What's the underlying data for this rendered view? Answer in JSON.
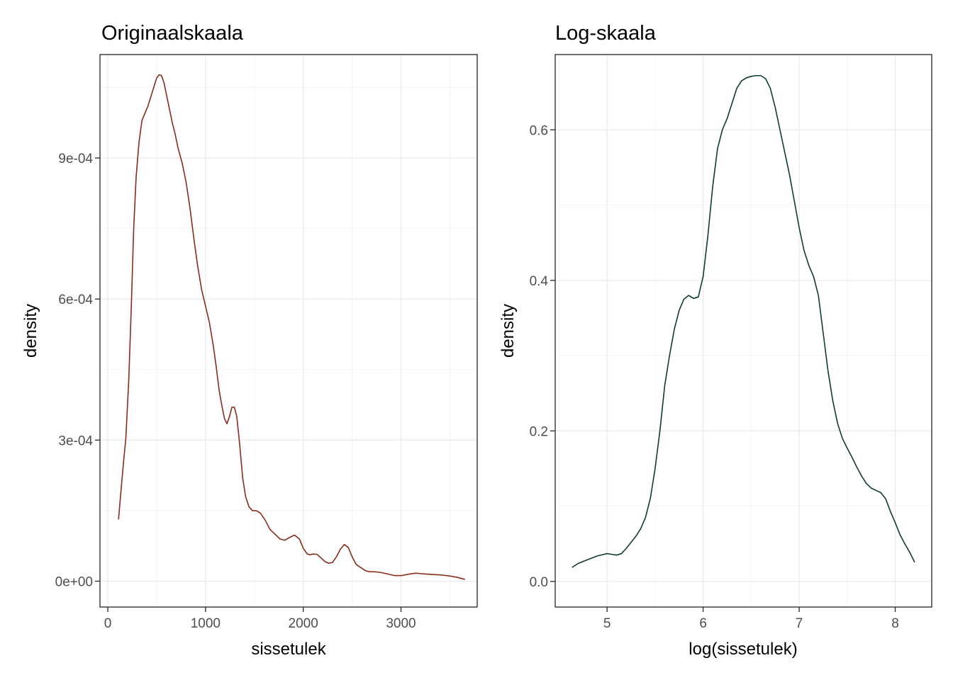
{
  "chart_data": [
    {
      "type": "line",
      "title": "Originaalskaala",
      "xlabel": "sissetulek",
      "ylabel": "density",
      "xlim": [
        -80,
        3780
      ],
      "ylim": [
        -5.5e-05,
        0.00112
      ],
      "x_ticks": [
        0,
        1000,
        2000,
        3000
      ],
      "x_tick_labels": [
        "0",
        "1000",
        "2000",
        "3000"
      ],
      "y_ticks": [
        0,
        0.0003,
        0.0006,
        0.0009
      ],
      "y_tick_labels": [
        "0e+00",
        "3e-04",
        "6e-04",
        "9e-04"
      ],
      "grid": true,
      "line_color": "#8b2b1a",
      "series": [
        {
          "x": [
            110,
            130,
            155,
            185,
            215,
            240,
            265,
            290,
            320,
            350,
            380,
            410,
            440,
            470,
            500,
            525,
            550,
            575,
            600,
            630,
            660,
            690,
            720,
            760,
            800,
            840,
            880,
            920,
            960,
            1000,
            1040,
            1080,
            1110,
            1140,
            1170,
            1195,
            1220,
            1245,
            1270,
            1295,
            1320,
            1350,
            1380,
            1410,
            1445,
            1480,
            1520,
            1560,
            1610,
            1660,
            1710,
            1760,
            1810,
            1860,
            1910,
            1960,
            2000,
            2040,
            2070,
            2100,
            2140,
            2180,
            2220,
            2260,
            2300,
            2340,
            2380,
            2420,
            2460,
            2500,
            2540,
            2580,
            2610,
            2640,
            2680,
            2720,
            2780,
            2850,
            2930,
            3010,
            3080,
            3150,
            3210,
            3270,
            3340,
            3420,
            3500,
            3580,
            3650
          ],
          "y": [
            0.000132,
            0.00018,
            0.00024,
            0.000305,
            0.00043,
            0.00058,
            0.00075,
            0.00086,
            0.000935,
            0.00098,
            0.000995,
            0.00101,
            0.00103,
            0.00105,
            0.00107,
            0.001077,
            0.001075,
            0.00106,
            0.001035,
            0.001005,
            0.000975,
            0.00095,
            0.00092,
            0.00089,
            0.00085,
            0.000795,
            0.00073,
            0.00067,
            0.00062,
            0.000585,
            0.00055,
            0.0005,
            0.000455,
            0.000405,
            0.00037,
            0.000345,
            0.000335,
            0.00035,
            0.00037,
            0.00037,
            0.00035,
            0.00029,
            0.00022,
            0.00018,
            0.000158,
            0.00015,
            0.00015,
            0.000145,
            0.00013,
            0.00011,
            0.0001,
            9e-05,
            8.7e-05,
            9.3e-05,
            9.8e-05,
            9e-05,
            7e-05,
            5.8e-05,
            5.6e-05,
            5.8e-05,
            5.7e-05,
            5e-05,
            4.2e-05,
            3.8e-05,
            4e-05,
            5.2e-05,
            6.8e-05,
            7.8e-05,
            7.2e-05,
            5.2e-05,
            3.6e-05,
            3e-05,
            2.6e-05,
            2.2e-05,
            2e-05,
            2e-05,
            1.9e-05,
            1.6e-05,
            1.2e-05,
            1.2e-05,
            1.5e-05,
            1.7e-05,
            1.6e-05,
            1.5e-05,
            1.4e-05,
            1.3e-05,
            1.1e-05,
            8e-06,
            4e-06
          ]
        }
      ]
    },
    {
      "type": "line",
      "title": "Log-skaala",
      "xlabel": "log(sissetulek)",
      "ylabel": "density",
      "xlim": [
        4.46,
        8.38
      ],
      "ylim": [
        -0.034,
        0.7
      ],
      "x_ticks": [
        5,
        6,
        7,
        8
      ],
      "x_tick_labels": [
        "5",
        "6",
        "7",
        "8"
      ],
      "y_ticks": [
        0,
        0.2,
        0.4,
        0.6
      ],
      "y_tick_labels": [
        "0.0",
        "0.2",
        "0.4",
        "0.6"
      ],
      "grid": true,
      "line_color": "#0f3d2a",
      "series": [
        {
          "x": [
            4.64,
            4.7,
            4.8,
            4.9,
            5.0,
            5.05,
            5.1,
            5.15,
            5.2,
            5.25,
            5.3,
            5.35,
            5.4,
            5.45,
            5.5,
            5.55,
            5.6,
            5.65,
            5.7,
            5.75,
            5.8,
            5.85,
            5.9,
            5.95,
            6.0,
            6.05,
            6.1,
            6.15,
            6.2,
            6.25,
            6.3,
            6.35,
            6.4,
            6.45,
            6.5,
            6.55,
            6.6,
            6.65,
            6.7,
            6.75,
            6.8,
            6.85,
            6.9,
            6.95,
            7.0,
            7.05,
            7.1,
            7.15,
            7.2,
            7.25,
            7.3,
            7.35,
            7.4,
            7.45,
            7.5,
            7.55,
            7.6,
            7.65,
            7.7,
            7.75,
            7.8,
            7.85,
            7.9,
            7.95,
            8.0,
            8.05,
            8.1,
            8.15,
            8.2
          ],
          "y": [
            0.019,
            0.024,
            0.029,
            0.034,
            0.037,
            0.036,
            0.035,
            0.037,
            0.044,
            0.052,
            0.06,
            0.07,
            0.085,
            0.11,
            0.15,
            0.2,
            0.26,
            0.3,
            0.335,
            0.36,
            0.375,
            0.38,
            0.376,
            0.378,
            0.405,
            0.46,
            0.525,
            0.575,
            0.6,
            0.615,
            0.635,
            0.655,
            0.665,
            0.669,
            0.671,
            0.672,
            0.672,
            0.668,
            0.655,
            0.63,
            0.6,
            0.57,
            0.54,
            0.505,
            0.47,
            0.44,
            0.42,
            0.405,
            0.38,
            0.33,
            0.28,
            0.24,
            0.21,
            0.19,
            0.177,
            0.165,
            0.152,
            0.14,
            0.13,
            0.124,
            0.121,
            0.118,
            0.11,
            0.093,
            0.078,
            0.062,
            0.05,
            0.039,
            0.026
          ]
        }
      ]
    }
  ]
}
